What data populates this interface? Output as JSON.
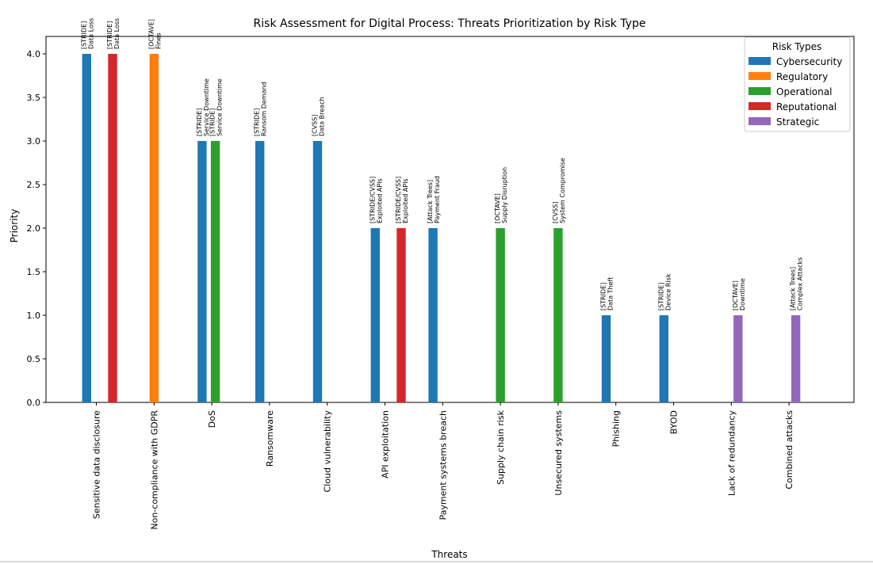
{
  "chart_data": {
    "type": "bar",
    "title": "Risk Assessment for Digital Process: Threats Prioritization by Risk Type",
    "xlabel": "Threats",
    "ylabel": "Priority",
    "ylim": [
      0,
      4.2
    ],
    "yticks": [
      "0.0",
      "0.5",
      "1.0",
      "1.5",
      "2.0",
      "2.5",
      "3.0",
      "3.5",
      "4.0"
    ],
    "grid": false,
    "legend": {
      "title": "Risk Types",
      "position": "top-right",
      "entries": [
        {
          "name": "Cybersecurity",
          "color": "#1f77b4"
        },
        {
          "name": "Regulatory",
          "color": "#ff7f0e"
        },
        {
          "name": "Operational",
          "color": "#2ca02c"
        },
        {
          "name": "Reputational",
          "color": "#d62728"
        },
        {
          "name": "Strategic",
          "color": "#9467bd"
        }
      ]
    },
    "categories": [
      "Sensitive data disclosure",
      "Non-compliance with GDPR",
      "DoS",
      "Ransomware",
      "Cloud vulnerability",
      "API exploitation",
      "Payment systems breach",
      "Supply chain risk",
      "Unsecured systems",
      "Phishing",
      "BYOD",
      "Lack of redundancy",
      "Combined attacks"
    ],
    "series": [
      {
        "name": "Cybersecurity",
        "color": "#1f77b4",
        "values": [
          4,
          null,
          3,
          3,
          3,
          2,
          2,
          null,
          null,
          1,
          1,
          null,
          null
        ],
        "labels": [
          [
            "[STRIDE]",
            "Data Loss"
          ],
          null,
          [
            "[STRIDE]",
            "Service Downtime"
          ],
          [
            "[STRIDE]",
            "Ransom Demand"
          ],
          [
            "[CVSS]",
            "Data Breach"
          ],
          [
            "[STRIDE/CVSS]",
            "Exploited APIs"
          ],
          [
            "[Attack Trees]",
            "Payment Fraud"
          ],
          null,
          null,
          [
            "[STRIDE]",
            "Data Theft"
          ],
          [
            "[STRIDE]",
            "Device Risk"
          ],
          null,
          null
        ]
      },
      {
        "name": "Regulatory",
        "color": "#ff7f0e",
        "values": [
          null,
          4,
          null,
          null,
          null,
          null,
          null,
          null,
          null,
          null,
          null,
          null,
          null
        ],
        "labels": [
          null,
          [
            "[OCTAVE]",
            "Fines"
          ],
          null,
          null,
          null,
          null,
          null,
          null,
          null,
          null,
          null,
          null,
          null
        ]
      },
      {
        "name": "Operational",
        "color": "#2ca02c",
        "values": [
          null,
          null,
          3,
          null,
          null,
          null,
          null,
          2,
          2,
          null,
          null,
          null,
          null
        ],
        "labels": [
          null,
          null,
          [
            "[STRIDE]",
            "Service Downtime"
          ],
          null,
          null,
          null,
          null,
          [
            "[OCTAVE]",
            "Supply Disruption"
          ],
          [
            "[CVSS]",
            "System Compromise"
          ],
          null,
          null,
          null,
          null
        ]
      },
      {
        "name": "Reputational",
        "color": "#d62728",
        "values": [
          4,
          null,
          null,
          null,
          null,
          2,
          null,
          null,
          null,
          null,
          null,
          null,
          null
        ],
        "labels": [
          [
            "[STRIDE]",
            "Data Loss"
          ],
          null,
          null,
          null,
          null,
          [
            "[STRIDE/CVSS]",
            "Exploited APIs"
          ],
          null,
          null,
          null,
          null,
          null,
          null,
          null
        ]
      },
      {
        "name": "Strategic",
        "color": "#9467bd",
        "values": [
          null,
          null,
          null,
          null,
          null,
          null,
          null,
          null,
          null,
          null,
          null,
          1,
          1
        ],
        "labels": [
          null,
          null,
          null,
          null,
          null,
          null,
          null,
          null,
          null,
          null,
          null,
          [
            "[OCTAVE]",
            "Downtime"
          ],
          [
            "[Attack Trees]",
            "Complex Attacks"
          ]
        ]
      }
    ]
  }
}
